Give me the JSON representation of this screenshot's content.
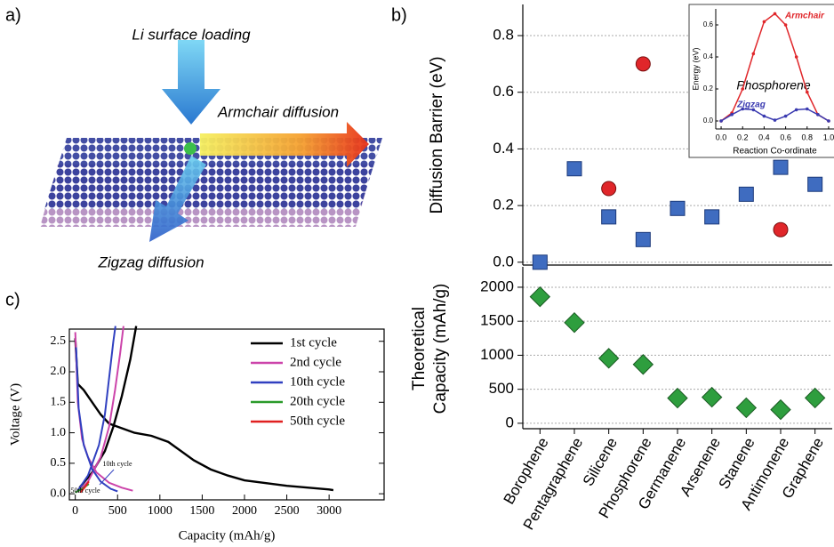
{
  "panel_labels": [
    "a)",
    "b)",
    "c)"
  ],
  "illustration": {
    "texts": [
      "Li surface loading",
      "Armchair diffusion",
      "Zigzag diffusion"
    ]
  },
  "chart_data": [
    {
      "type": "scatter",
      "ylabel": "Diffusion Barrier (eV)",
      "ylim": [
        -0.01,
        0.91
      ],
      "yticks": [
        {
          "value": 0,
          "label": "0.0"
        },
        0.2,
        0.4,
        0.6,
        0.8
      ],
      "grid": true,
      "series": [
        {
          "marker": "square",
          "color": "#3f6cc0",
          "values": [
            0.0,
            0.33,
            0.16,
            0.08,
            0.19,
            0.16,
            0.24,
            0.335,
            0.275
          ]
        },
        {
          "marker": "circle",
          "color": "#e0262a",
          "values": [
            null,
            null,
            0.26,
            0.7,
            null,
            null,
            null,
            0.115,
            null
          ]
        }
      ]
    },
    {
      "type": "scatter",
      "categories": [
        "Borophene",
        "Pentagraphene",
        "Silicene",
        "Phosphorene",
        "Germanene",
        "Arsenene",
        "Stanene",
        "Antimonene",
        "Graphene"
      ],
      "ylabel": [
        "Theoretical",
        "Capacity (mAh/g)"
      ],
      "ylim": [
        -80,
        2300
      ],
      "yticks": [
        0,
        500,
        1000,
        1500,
        2000
      ],
      "grid": true,
      "series": [
        {
          "marker": "diamond",
          "color": "#2e9e3e",
          "values": [
            1860,
            1480,
            955,
            865,
            370,
            383,
            228,
            200,
            372
          ]
        }
      ]
    },
    {
      "type": "line",
      "title": "Phosphorene",
      "xlabel": "Reaction Co-ordinate",
      "ylabel": "Energy (eV)",
      "x": [
        0,
        0.1,
        0.2,
        0.3,
        0.4,
        0.5,
        0.6,
        0.7,
        0.8,
        0.9,
        1.0
      ],
      "xlim": [
        -0.05,
        1.05
      ],
      "xticks": [
        {
          "value": 0,
          "label": "0.0"
        },
        0.2,
        0.4,
        0.6,
        0.8,
        {
          "value": 1,
          "label": "1.0"
        }
      ],
      "ylim": [
        -0.05,
        0.7
      ],
      "yticks": [
        {
          "value": 0,
          "label": "0.0"
        },
        0.2,
        0.4,
        0.6
      ],
      "series": [
        {
          "name": "Armchair",
          "color": "#e0262a",
          "values": [
            0,
            0.05,
            0.2,
            0.42,
            0.62,
            0.67,
            0.6,
            0.4,
            0.18,
            0.04,
            0
          ]
        },
        {
          "name": "Zigzag",
          "color": "#3a3ab0",
          "values": [
            0,
            0.04,
            0.075,
            0.07,
            0.03,
            0.005,
            0.03,
            0.07,
            0.075,
            0.04,
            0
          ]
        }
      ]
    },
    {
      "type": "line",
      "xlabel": "Capacity (mAh/g)",
      "ylabel": "Voltage (V)",
      "xlim": [
        -70,
        3650
      ],
      "xticks": [
        0,
        500,
        1000,
        1500,
        2000,
        2500,
        3000
      ],
      "ylim": [
        -0.1,
        2.7
      ],
      "yticks": [
        {
          "value": 0,
          "label": "0.0"
        },
        0.5,
        {
          "value": 1,
          "label": "1.0"
        },
        1.5,
        {
          "value": 2,
          "label": "2.0"
        },
        2.5
      ],
      "legend": "upper right",
      "annotations": [
        "10th cycle",
        "50th cycle"
      ],
      "series": [
        {
          "name": "1st cycle",
          "color": "#000000",
          "x": [
            0,
            30,
            100,
            200,
            300,
            400,
            500,
            700,
            900,
            1100,
            1200,
            1400,
            1600,
            1800,
            2000,
            2500,
            3000,
            3050,
            null,
            50,
            200,
            350,
            450,
            550,
            650,
            720
          ],
          "values": [
            2.55,
            1.8,
            1.7,
            1.5,
            1.3,
            1.15,
            1.1,
            1.0,
            0.95,
            0.85,
            0.75,
            0.55,
            0.4,
            0.3,
            0.22,
            0.13,
            0.07,
            0.06,
            null,
            0.1,
            0.35,
            0.7,
            1.1,
            1.6,
            2.2,
            2.75
          ]
        },
        {
          "name": "2nd cycle",
          "color": "#cc44aa",
          "x": [
            0,
            10,
            30,
            80,
            150,
            250,
            400,
            550,
            680,
            null,
            30,
            150,
            300,
            400,
            470,
            530,
            570
          ],
          "values": [
            2.65,
            2.3,
            1.5,
            0.9,
            0.6,
            0.35,
            0.18,
            0.1,
            0.05,
            null,
            0.03,
            0.2,
            0.6,
            1.1,
            1.7,
            2.3,
            2.75
          ]
        },
        {
          "name": "10th cycle",
          "color": "#3040c0",
          "x": [
            10,
            40,
            100,
            200,
            300,
            420,
            500,
            null,
            20,
            150,
            280,
            350,
            400,
            450,
            475
          ],
          "values": [
            2.4,
            1.4,
            0.8,
            0.4,
            0.2,
            0.08,
            0.04,
            null,
            0.03,
            0.3,
            0.8,
            1.3,
            1.9,
            2.5,
            2.75
          ]
        },
        {
          "name": "20th cycle",
          "color": "#2a9a2a",
          "x": [
            0,
            80,
            160
          ],
          "values": [
            0.02,
            0.08,
            0.16
          ]
        },
        {
          "name": "50th cycle",
          "color": "#e02020",
          "x": [
            60,
            110,
            160
          ],
          "values": [
            0.02,
            0.1,
            0.2
          ]
        }
      ]
    }
  ]
}
